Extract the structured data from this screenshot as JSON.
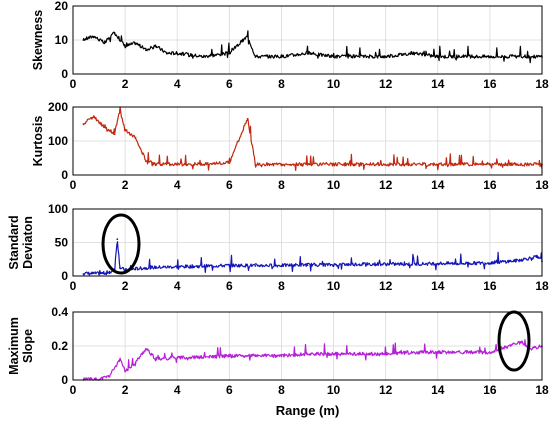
{
  "chart_data": [
    {
      "type": "line",
      "ylabel": "Skewness",
      "xlim": [
        0,
        18
      ],
      "ylim": [
        0,
        20
      ],
      "yticks": [
        "0",
        "10",
        "20"
      ],
      "xticks": [
        "0",
        "2",
        "4",
        "6",
        "8",
        "10",
        "12",
        "14",
        "16",
        "18"
      ],
      "color": "#000000",
      "grid": true,
      "series": [
        {
          "x": [
            0.4,
            0.8,
            1.2,
            1.6,
            2.0,
            2.4,
            2.8,
            3.2,
            3.6,
            4.0,
            5.0,
            6.0,
            6.7,
            7.0,
            8.0,
            9.0,
            10.0,
            11.0,
            12.0,
            13.0,
            14.0,
            15.0,
            16.0,
            17.0,
            18.0
          ],
          "y": [
            10,
            11,
            9,
            12,
            8,
            9,
            7,
            8,
            6,
            6,
            5,
            6,
            11,
            5,
            5,
            6,
            5,
            5,
            5,
            6,
            5,
            5,
            5,
            5,
            5
          ]
        }
      ]
    },
    {
      "type": "line",
      "ylabel": "Kurtosis",
      "xlim": [
        0,
        18
      ],
      "ylim": [
        0,
        200
      ],
      "yticks": [
        "0",
        "100",
        "200"
      ],
      "xticks": [
        "0",
        "2",
        "4",
        "6",
        "8",
        "10",
        "12",
        "14",
        "16",
        "18"
      ],
      "color": "#c0280f",
      "grid": true,
      "series": [
        {
          "x": [
            0.4,
            0.8,
            1.2,
            1.6,
            1.8,
            2.0,
            2.4,
            2.8,
            3.2,
            4.0,
            5.0,
            6.0,
            6.7,
            7.0,
            8.0,
            9.0,
            10.0,
            11.0,
            12.0,
            13.0,
            14.0,
            15.0,
            16.0,
            17.0,
            18.0
          ],
          "y": [
            150,
            170,
            140,
            120,
            190,
            130,
            110,
            40,
            30,
            30,
            30,
            35,
            165,
            30,
            30,
            30,
            30,
            30,
            30,
            30,
            30,
            30,
            30,
            30,
            30
          ]
        }
      ]
    },
    {
      "type": "line",
      "ylabel": "Standard Deviaton",
      "xlim": [
        0,
        18
      ],
      "ylim": [
        0,
        100
      ],
      "yticks": [
        "0",
        "50",
        "100"
      ],
      "xticks": [
        "0",
        "2",
        "4",
        "6",
        "8",
        "10",
        "12",
        "14",
        "16",
        "18"
      ],
      "color": "#1515b5",
      "grid": true,
      "series": [
        {
          "x": [
            0.4,
            1.0,
            1.4,
            1.6,
            1.7,
            1.8,
            2.0,
            2.4,
            3.0,
            4.0,
            5.0,
            6.0,
            7.0,
            8.0,
            9.0,
            10.0,
            11.0,
            12.0,
            13.0,
            14.0,
            15.0,
            16.0,
            17.0,
            17.8,
            18.0
          ],
          "y": [
            3,
            3,
            4,
            10,
            55,
            12,
            8,
            10,
            12,
            13,
            14,
            15,
            15,
            15,
            16,
            16,
            17,
            17,
            17,
            18,
            18,
            19,
            22,
            28,
            22
          ]
        }
      ]
    },
    {
      "type": "line",
      "ylabel": "Maximum Slope",
      "xlim": [
        0,
        18
      ],
      "ylim": [
        0,
        0.4
      ],
      "yticks": [
        "0",
        "0.2",
        "0.4"
      ],
      "xticks": [
        "0",
        "2",
        "4",
        "6",
        "8",
        "10",
        "12",
        "14",
        "16",
        "18"
      ],
      "xlabel": "Range (m)",
      "color": "#b51fd8",
      "grid": true,
      "series": [
        {
          "x": [
            0.4,
            1.0,
            1.4,
            1.8,
            2.0,
            2.4,
            2.8,
            3.2,
            4.0,
            5.0,
            6.0,
            7.0,
            8.0,
            9.0,
            10.0,
            11.0,
            12.0,
            13.0,
            14.0,
            15.0,
            16.0,
            16.8,
            17.2,
            17.6,
            18.0
          ],
          "y": [
            0.0,
            0.0,
            0.02,
            0.12,
            0.05,
            0.1,
            0.18,
            0.12,
            0.13,
            0.13,
            0.14,
            0.14,
            0.14,
            0.15,
            0.15,
            0.15,
            0.15,
            0.16,
            0.16,
            0.16,
            0.16,
            0.2,
            0.22,
            0.18,
            0.2
          ]
        }
      ]
    }
  ]
}
